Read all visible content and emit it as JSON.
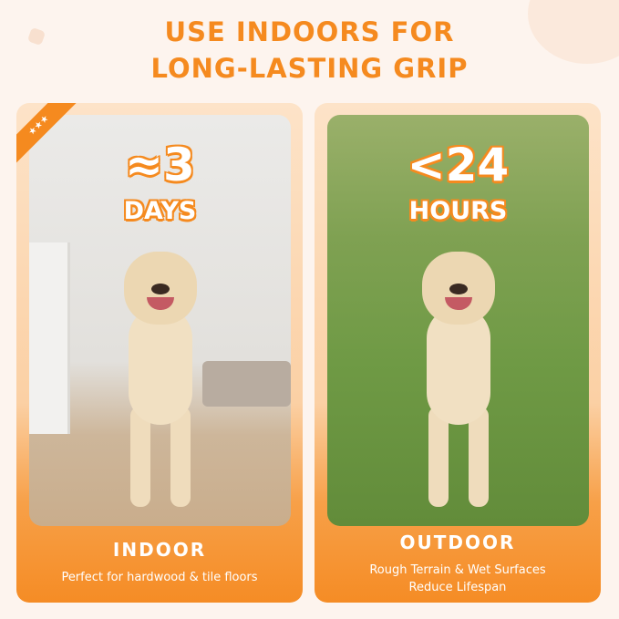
{
  "title": {
    "line1": "USE INDOORS FOR",
    "line2": "LONG-LASTING GRIP"
  },
  "cards": [
    {
      "stat": "≈3",
      "unit": "DAYS",
      "label": "INDOOR",
      "description": "Perfect for hardwood & tile floors",
      "badge": "★★★"
    },
    {
      "stat": "<24",
      "unit": "HOURS",
      "label": "OUTDOOR",
      "description_line1": "Rough Terrain & Wet Surfaces",
      "description_line2": "Reduce Lifespan"
    }
  ],
  "colors": {
    "accent": "#f58a1f",
    "background": "#fdf4ee"
  }
}
